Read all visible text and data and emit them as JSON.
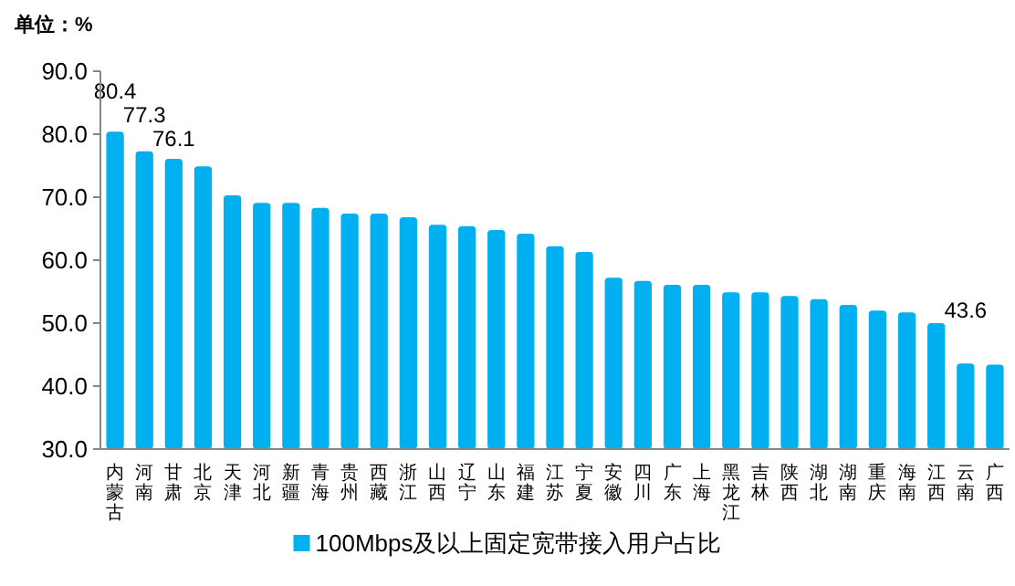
{
  "chart_data": {
    "type": "bar",
    "ylabel": "单位：%",
    "categories": [
      "内蒙古",
      "河南",
      "甘肃",
      "北京",
      "天津",
      "河北",
      "新疆",
      "青海",
      "贵州",
      "西藏",
      "浙江",
      "山西",
      "辽宁",
      "山东",
      "福建",
      "江苏",
      "宁夏",
      "安徽",
      "四川",
      "广东",
      "上海",
      "黑龙江",
      "吉林",
      "陕西",
      "湖北",
      "湖南",
      "重庆",
      "海南",
      "江西",
      "云南",
      "广西"
    ],
    "series": [
      {
        "name": "100Mbps及以上固定宽带接入用户占比",
        "color": "#00b0f0",
        "values": [
          80.4,
          77.3,
          76.1,
          74.9,
          70.3,
          69.1,
          69.1,
          68.3,
          67.4,
          67.4,
          66.8,
          65.6,
          65.4,
          64.8,
          64.2,
          62.2,
          61.3,
          57.2,
          56.7,
          56.1,
          56.1,
          54.9,
          54.9,
          54.3,
          53.8,
          52.9,
          52.0,
          51.7,
          50.0,
          43.6,
          43.4
        ],
        "value_labels": [
          "80.4",
          "77.3",
          "76.1",
          null,
          null,
          null,
          null,
          null,
          null,
          null,
          null,
          null,
          null,
          null,
          null,
          null,
          null,
          null,
          null,
          null,
          null,
          null,
          null,
          null,
          null,
          null,
          null,
          null,
          null,
          "43.6",
          null
        ]
      }
    ],
    "ylim": [
      30,
      90
    ],
    "yticks": [
      {
        "value": 30,
        "label": "30.0"
      },
      {
        "value": 40,
        "label": "40.0"
      },
      {
        "value": 50,
        "label": "50.0"
      },
      {
        "value": 60,
        "label": "60.0"
      },
      {
        "value": 70,
        "label": "70.0"
      },
      {
        "value": 80,
        "label": "80.0"
      },
      {
        "value": 90,
        "label": "90.0"
      }
    ],
    "grid": false,
    "legend": "bottom"
  }
}
